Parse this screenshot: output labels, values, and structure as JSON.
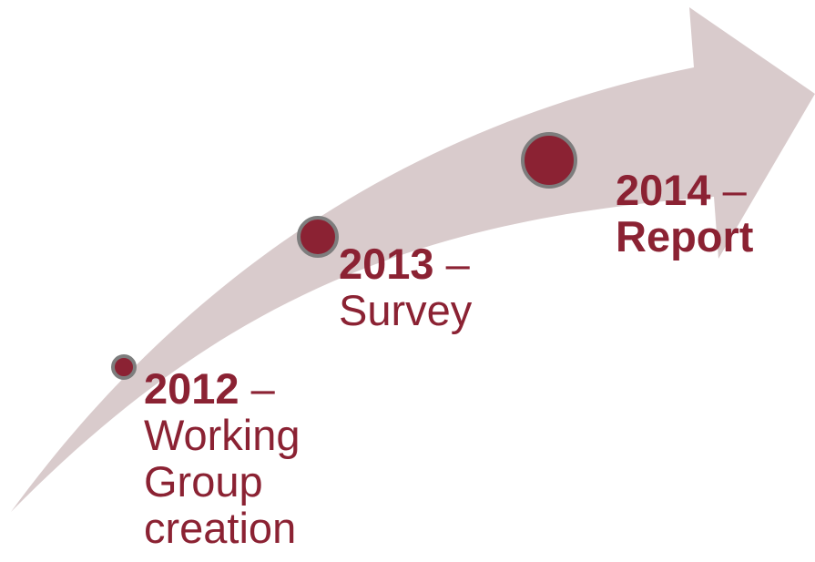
{
  "colors": {
    "arrow_fill": "#d9cbcc",
    "accent": "#8b2233",
    "marker_ring": "#7d7d7d"
  },
  "milestones": [
    {
      "year": "2012",
      "dash": " –",
      "description": "Working\nGroup\ncreation"
    },
    {
      "year": "2013",
      "dash": " –",
      "description": "Survey"
    },
    {
      "year": "2014",
      "dash": " –",
      "description": "Report"
    }
  ]
}
